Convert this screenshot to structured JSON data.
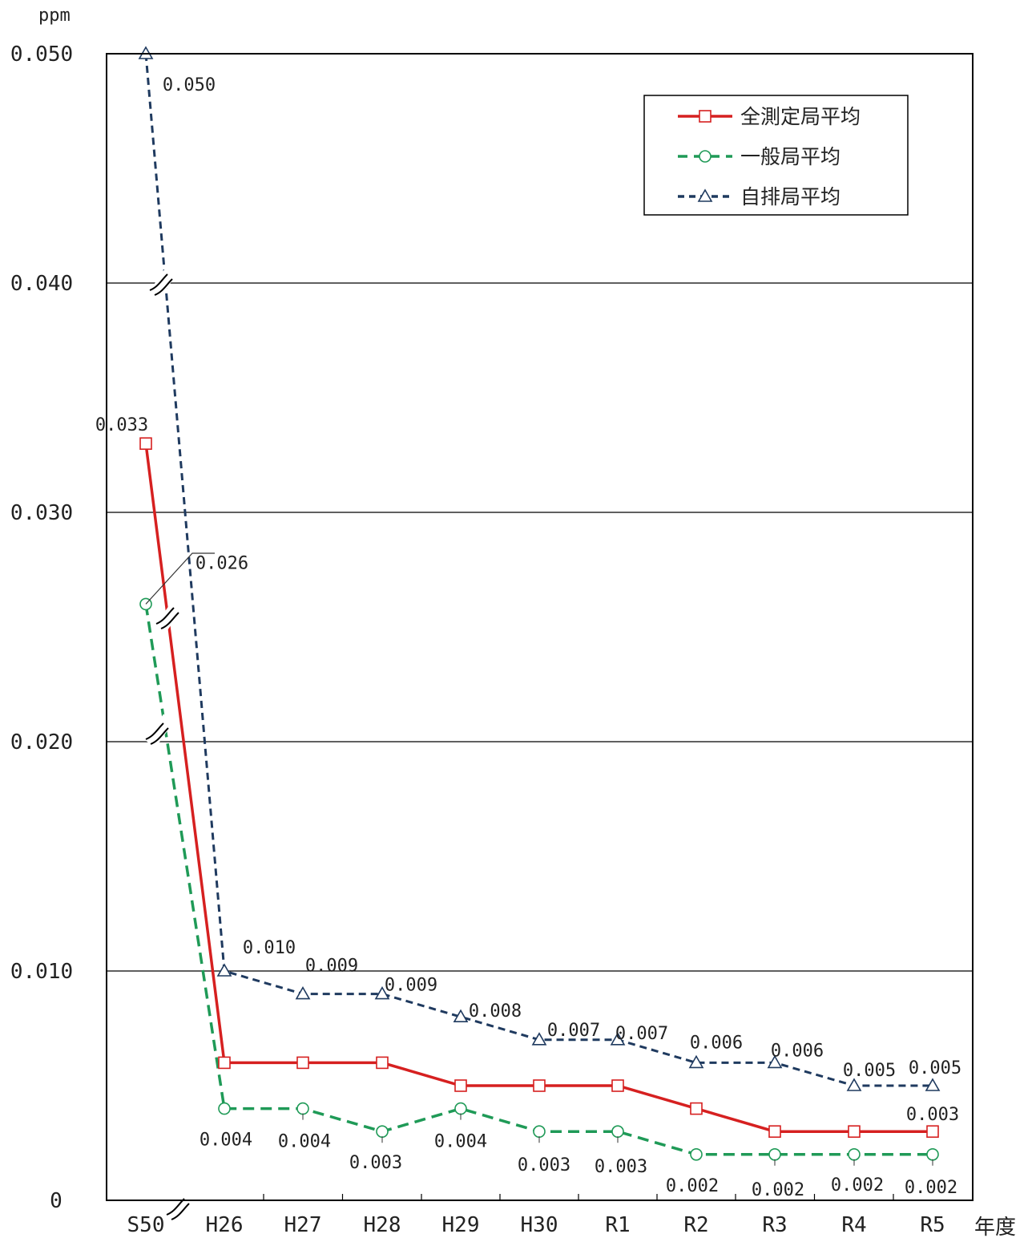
{
  "chart_data": {
    "type": "line",
    "unit_label": "ppm",
    "x_axis_label": "年度",
    "categories": [
      "S50",
      "H26",
      "H27",
      "H28",
      "H29",
      "H30",
      "R1",
      "R2",
      "R3",
      "R4",
      "R5"
    ],
    "y_ticks": [
      "0",
      "0.010",
      "0.020",
      "0.030",
      "0.040",
      "0.050"
    ],
    "ylim": [
      0,
      0.05
    ],
    "grid": true,
    "axis_break": true,
    "legend_position": "top-right",
    "series": [
      {
        "name": "全測定局平均",
        "color": "#d62020",
        "marker": "square",
        "line_style": "solid",
        "values": [
          0.033,
          0.006,
          0.006,
          0.006,
          0.005,
          0.005,
          0.005,
          0.004,
          0.003,
          0.003,
          0.003
        ],
        "data_labels": [
          "0.033",
          "",
          "",
          "",
          "",
          "",
          "",
          "",
          "",
          "",
          "0.003"
        ]
      },
      {
        "name": "一般局平均",
        "color": "#1f9a57",
        "marker": "circle",
        "line_style": "dashed",
        "values": [
          0.026,
          0.004,
          0.004,
          0.003,
          0.004,
          0.003,
          0.003,
          0.002,
          0.002,
          0.002,
          0.002
        ],
        "data_labels": [
          "0.026",
          "0.004",
          "0.004",
          "0.003",
          "0.004",
          "0.003",
          "0.003",
          "0.002",
          "0.002",
          "0.002",
          "0.002"
        ]
      },
      {
        "name": "自排局平均",
        "color": "#1f3a5f",
        "marker": "triangle",
        "line_style": "short-dashed",
        "values": [
          0.05,
          0.01,
          0.009,
          0.009,
          0.008,
          0.007,
          0.007,
          0.006,
          0.006,
          0.005,
          0.005
        ],
        "data_labels": [
          "0.050",
          "0.010",
          "0.009",
          "0.009",
          "0.008",
          "0.007",
          "0.007",
          "0.006",
          "0.006",
          "0.005",
          "0.005"
        ]
      }
    ]
  }
}
